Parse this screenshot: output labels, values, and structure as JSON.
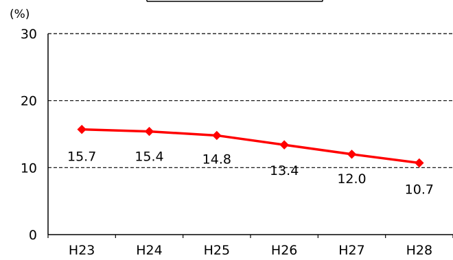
{
  "chart_data": {
    "type": "line",
    "title": "",
    "unit_label": "(%)",
    "categories": [
      "H23",
      "H24",
      "H25",
      "H26",
      "H27",
      "H28"
    ],
    "series": [
      {
        "values": [
          15.7,
          15.4,
          14.8,
          13.4,
          12.0,
          10.7
        ],
        "value_labels": [
          "15.7",
          "15.4",
          "14.8",
          "13.4",
          "12.0",
          "10.7"
        ],
        "color": "#ff0000"
      }
    ],
    "ylim": [
      0,
      30
    ],
    "yticks": [
      0,
      10,
      20,
      30
    ],
    "ytick_labels": [
      "0",
      "10",
      "20",
      "30"
    ],
    "grid": "dashed horizontal",
    "legend": "none",
    "title_box_color": "#000000"
  }
}
